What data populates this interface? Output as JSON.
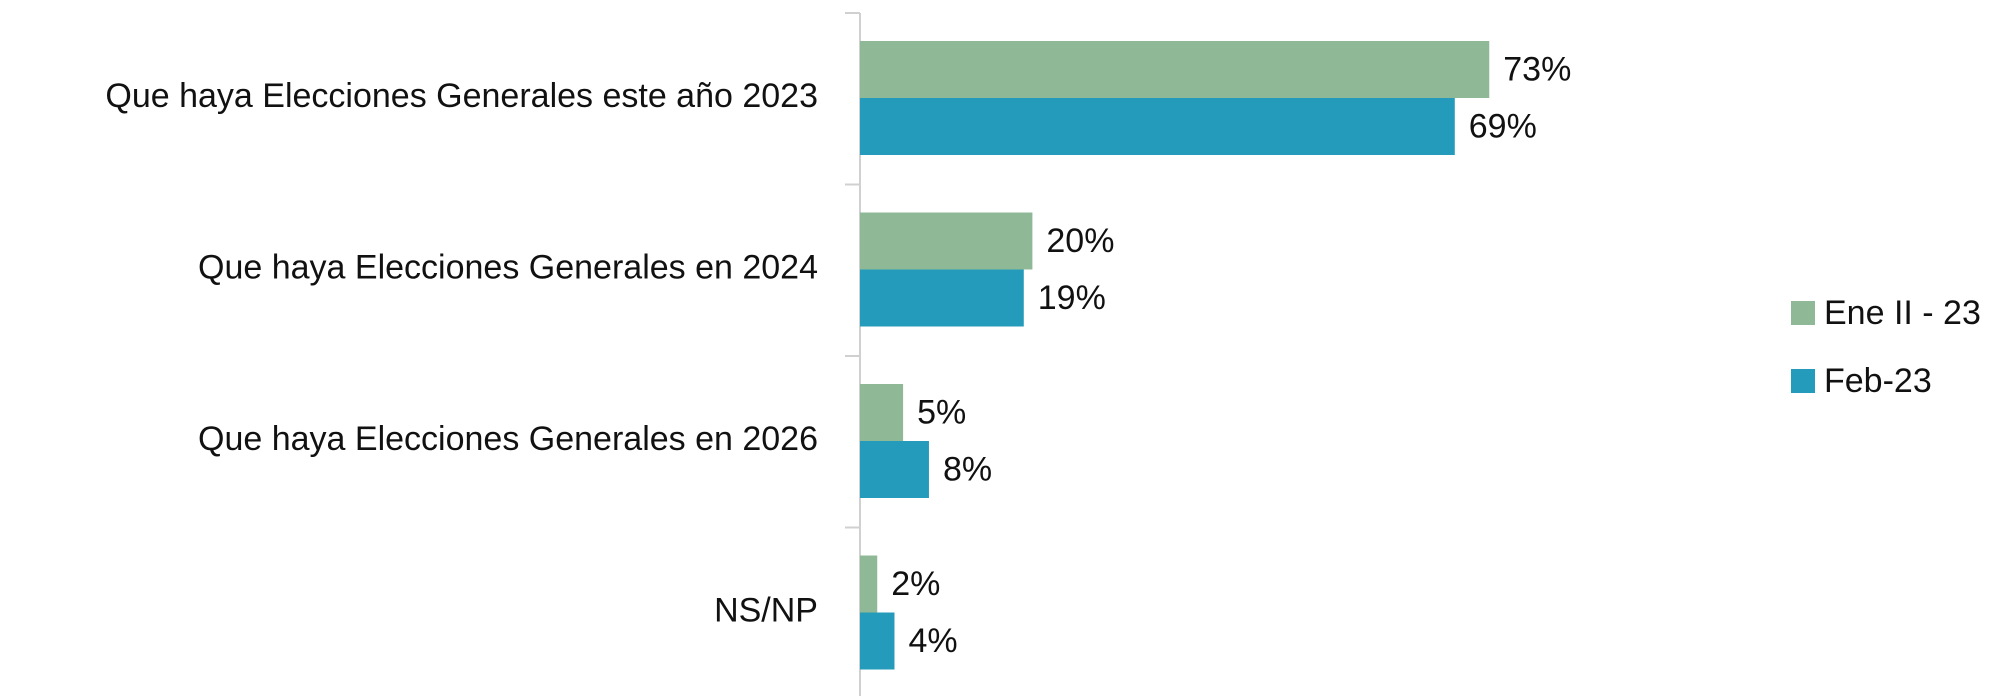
{
  "chart_data": {
    "type": "barh",
    "categories": [
      "Que haya Elecciones Generales este año 2023",
      "Que haya Elecciones Generales en 2024",
      "Que haya Elecciones Generales en 2026",
      "NS/NP"
    ],
    "series": [
      {
        "name": "Ene II - 23",
        "color": "#8fb996",
        "values": [
          73,
          20,
          5,
          2
        ],
        "value_labels": [
          "73%",
          "20%",
          "5%",
          "2%"
        ]
      },
      {
        "name": "Feb-23",
        "color": "#259bbb",
        "values": [
          69,
          19,
          8,
          4
        ],
        "value_labels": [
          "69%",
          "19%",
          "8%",
          "4%"
        ]
      }
    ],
    "xlim": [
      0,
      100
    ],
    "legend": "right"
  }
}
